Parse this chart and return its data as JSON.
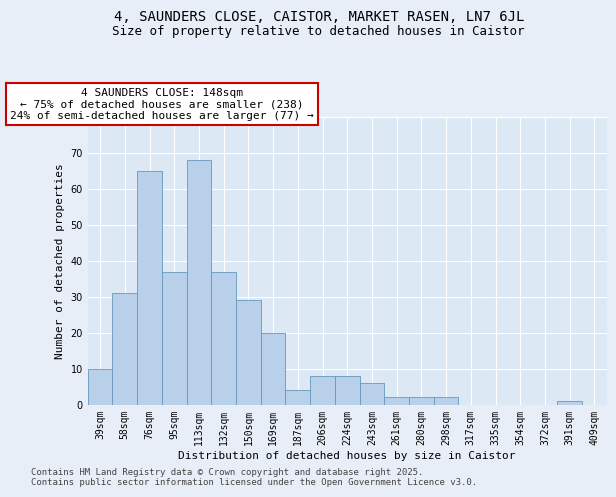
{
  "title1": "4, SAUNDERS CLOSE, CAISTOR, MARKET RASEN, LN7 6JL",
  "title2": "Size of property relative to detached houses in Caistor",
  "xlabel": "Distribution of detached houses by size in Caistor",
  "ylabel": "Number of detached properties",
  "categories": [
    "39sqm",
    "58sqm",
    "76sqm",
    "95sqm",
    "113sqm",
    "132sqm",
    "150sqm",
    "169sqm",
    "187sqm",
    "206sqm",
    "224sqm",
    "243sqm",
    "261sqm",
    "280sqm",
    "298sqm",
    "317sqm",
    "335sqm",
    "354sqm",
    "372sqm",
    "391sqm",
    "409sqm"
  ],
  "values": [
    10,
    31,
    65,
    37,
    68,
    37,
    29,
    20,
    4,
    8,
    8,
    6,
    2,
    2,
    2,
    0,
    0,
    0,
    0,
    1,
    0
  ],
  "bar_color": "#b8d0ea",
  "bar_edge_color": "#6699bb",
  "annotation_text": "4 SAUNDERS CLOSE: 148sqm\n← 75% of detached houses are smaller (238)\n24% of semi-detached houses are larger (77) →",
  "annotation_box_facecolor": "#ffffff",
  "annotation_box_edgecolor": "#cc0000",
  "ylim": [
    0,
    80
  ],
  "yticks": [
    0,
    10,
    20,
    30,
    40,
    50,
    60,
    70,
    80
  ],
  "fig_bg_color": "#e8eef8",
  "plot_bg_color": "#dce8f4",
  "grid_color": "#ffffff",
  "footer_text": "Contains HM Land Registry data © Crown copyright and database right 2025.\nContains public sector information licensed under the Open Government Licence v3.0.",
  "title1_fontsize": 10,
  "title2_fontsize": 9,
  "axis_label_fontsize": 8,
  "tick_fontsize": 7,
  "annotation_fontsize": 8,
  "footer_fontsize": 6.5
}
